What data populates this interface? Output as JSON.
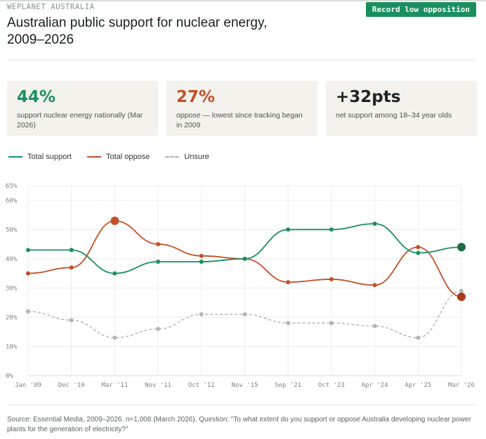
{
  "header": {
    "brand": "WEPLANET AUSTRALIA",
    "badge": "Record low opposition",
    "title": "Australian public support for nuclear energy, 2009–2026"
  },
  "stats": [
    {
      "value": "44%",
      "caption": "support nuclear energy nationally (Mar 2026)",
      "color": "#1a8f5e"
    },
    {
      "value": "27%",
      "caption": "oppose — lowest since tracking began in 2009",
      "color": "#c4502a"
    },
    {
      "value": "+32pts",
      "caption": "net support among 18–34 year olds",
      "color": "#1f2421"
    }
  ],
  "footer": {
    "source": "Source: Essential Media, 2009–2026. n=1,008 (March 2026). Question: \"To what extent do you support or oppose Australia developing nuclear power plants for the generation of electricity?\""
  },
  "chart_data": {
    "type": "line",
    "categories": [
      "Jan '09",
      "Dec '10",
      "Mar '11",
      "Nov '11",
      "Oct '12",
      "Nov '15",
      "Sep '21",
      "Oct '23",
      "Apr '24",
      "Apr '25",
      "Mar '26"
    ],
    "series": [
      {
        "name": "Total support",
        "color": "#1a8f5e",
        "dashed": false,
        "values": [
          43,
          43,
          35,
          39,
          39,
          40,
          50,
          50,
          52,
          42,
          44
        ]
      },
      {
        "name": "Total oppose",
        "color": "#c4502a",
        "dashed": false,
        "values": [
          35,
          37,
          53,
          45,
          41,
          40,
          32,
          33,
          31,
          44,
          27
        ]
      },
      {
        "name": "Unsure",
        "color": "#b5b5b5",
        "dashed": true,
        "values": [
          22,
          19,
          13,
          16,
          21,
          21,
          18,
          18,
          17,
          13,
          29
        ]
      }
    ],
    "yticks": [
      "0%",
      "10%",
      "20%",
      "30%",
      "40%",
      "50%",
      "60%",
      "65%"
    ],
    "ylim": [
      0,
      65
    ],
    "grid": true,
    "legend": "top-left",
    "highlights": [
      {
        "series": 0,
        "index": 10,
        "color": "#1f6b46"
      },
      {
        "series": 1,
        "index": 2,
        "color": "#c4502a"
      },
      {
        "series": 1,
        "index": 10,
        "color": "#a8391e"
      }
    ]
  }
}
